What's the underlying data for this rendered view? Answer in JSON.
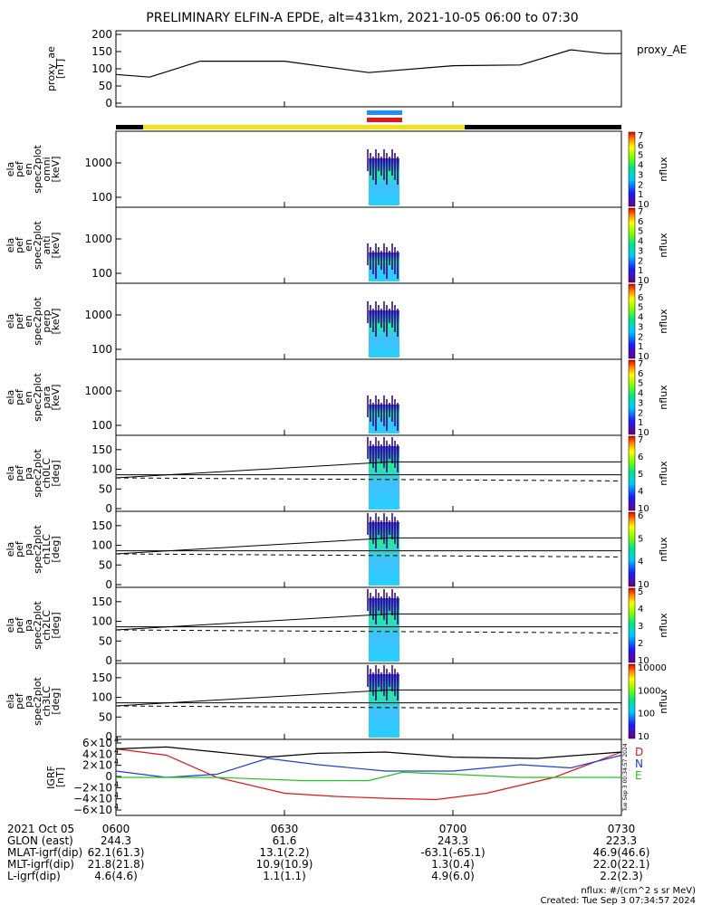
{
  "title": "PRELIMINARY ELFIN-A EPDE, alt=431km, 2021-10-05 06:00 to 07:30",
  "colors": {
    "accent_blue": "#1e90ff",
    "accent_red": "#e8141b",
    "accent_yellow": "#f5e11a",
    "trace_black": "#000000",
    "trace_red": "#e0141b",
    "trace_blue": "#1f3fd6",
    "trace_green": "#22c322"
  },
  "panels": [
    {
      "id": "proxy_ae",
      "ylabel": [
        "proxy_ae",
        "[nT]"
      ],
      "side_label": "proxy_AE",
      "yticks": [
        "0",
        "50",
        "100",
        "150",
        "200"
      ]
    },
    {
      "id": "omni",
      "ylabel": [
        "ela",
        "pef",
        "en",
        "spec2plot",
        "omni",
        "[keV]"
      ],
      "yticks": [
        "100",
        "1000"
      ],
      "cbar_label": "nflux",
      "cbar_ticks": [
        "10",
        "1",
        "2",
        "3",
        "4",
        "5",
        "6",
        "7"
      ]
    },
    {
      "id": "anti",
      "ylabel": [
        "ela",
        "pef",
        "en",
        "spec2plot",
        "anti",
        "[keV]"
      ],
      "yticks": [
        "100",
        "1000"
      ],
      "cbar_label": "nflux",
      "cbar_ticks": [
        "10",
        "1",
        "2",
        "3",
        "4",
        "5",
        "6",
        "7"
      ]
    },
    {
      "id": "perp",
      "ylabel": [
        "ela",
        "pef",
        "en",
        "spec2plot",
        "perp",
        "[keV]"
      ],
      "yticks": [
        "100",
        "1000"
      ],
      "cbar_label": "nflux",
      "cbar_ticks": [
        "10",
        "1",
        "2",
        "3",
        "4",
        "5",
        "6",
        "7"
      ]
    },
    {
      "id": "para",
      "ylabel": [
        "ela",
        "pef",
        "en",
        "spec2plot",
        "para",
        "[keV]"
      ],
      "yticks": [
        "100",
        "1000"
      ],
      "cbar_label": "nflux",
      "cbar_ticks": [
        "10",
        "1",
        "2",
        "3",
        "4",
        "5",
        "6",
        "7"
      ]
    },
    {
      "id": "ch0LC",
      "ylabel": [
        "ela",
        "pef",
        "pa",
        "spec2plot",
        "ch0LC",
        "[deg]"
      ],
      "yticks": [
        "0",
        "50",
        "100",
        "150"
      ],
      "cbar_label": "nflux",
      "cbar_ticks": [
        "10",
        "4",
        "5",
        "6",
        "7"
      ]
    },
    {
      "id": "ch1LC",
      "ylabel": [
        "ela",
        "pef",
        "pa",
        "spec2plot",
        "ch1LC",
        "[deg]"
      ],
      "yticks": [
        "0",
        "50",
        "100",
        "150"
      ],
      "cbar_label": "nflux",
      "cbar_ticks": [
        "10",
        "4",
        "5",
        "6"
      ]
    },
    {
      "id": "ch2LC",
      "ylabel": [
        "ela",
        "pef",
        "pa",
        "spec2plot",
        "ch2LC",
        "[deg]"
      ],
      "yticks": [
        "0",
        "50",
        "100",
        "150"
      ],
      "cbar_label": "nflux",
      "cbar_ticks": [
        "10",
        "2",
        "3",
        "4",
        "5"
      ]
    },
    {
      "id": "ch3LC",
      "ylabel": [
        "ela",
        "pef",
        "pa",
        "spec2plot",
        "ch3LC",
        "[deg]"
      ],
      "yticks": [
        "0",
        "50",
        "100",
        "150"
      ],
      "cbar_label": "nflux",
      "cbar_ticks": [
        "10",
        "100",
        "1000",
        "10000"
      ]
    },
    {
      "id": "igrf",
      "ylabel": [
        "IGRF",
        "[nT]"
      ],
      "yticks": [
        "−6×10",
        "−4×10",
        "−2×10",
        "0",
        "2×10",
        "4×10",
        "6×10"
      ],
      "ytick_exp": "4",
      "legend": [
        "D",
        "N",
        "E"
      ],
      "created_vertical": "Tue Sep  3 00:34:57 2024"
    }
  ],
  "bottom_table": {
    "rows": [
      {
        "label": "2021 Oct 05",
        "values": [
          "0600",
          "0630",
          "0700",
          "0730"
        ]
      },
      {
        "label": "GLON (east)",
        "values": [
          "244.3",
          "61.6",
          "243.3",
          "223.3"
        ]
      },
      {
        "label": "MLAT-igrf(dip)",
        "values": [
          "62.1(61.3)",
          "13.1(2.2)",
          "-63.1(-65.1)",
          "46.9(46.6)"
        ]
      },
      {
        "label": "MLT-igrf(dip)",
        "values": [
          "21.8(21.8)",
          "10.9(10.9)",
          "1.3(0.4)",
          "22.0(22.1)"
        ]
      },
      {
        "label": "L-igrf(dip)",
        "values": [
          "4.6(4.6)",
          "1.1(1.1)",
          "4.9(6.0)",
          "2.2(2.3)"
        ]
      }
    ]
  },
  "footer": {
    "units": "nflux: #/(cm^2 s sr MeV)",
    "created": "Created: Tue Sep  3 07:34:57 2024"
  },
  "chart_data": [
    {
      "type": "line",
      "panel": "proxy_ae",
      "x_hours": [
        6.0,
        6.1,
        6.25,
        6.5,
        6.75,
        7.0,
        7.2,
        7.35,
        7.45,
        7.5
      ],
      "values": [
        85,
        78,
        120,
        120,
        90,
        108,
        110,
        150,
        140,
        140
      ],
      "ylim": [
        0,
        200
      ]
    },
    {
      "type": "line",
      "panel": "igrf",
      "ylim": [
        -60000,
        60000
      ],
      "series": [
        {
          "name": "D",
          "x_hours": [
            6.0,
            6.15,
            6.3,
            6.5,
            6.65,
            6.8,
            6.95,
            7.1,
            7.3,
            7.5
          ],
          "values": [
            45000,
            35000,
            0,
            -25000,
            -30000,
            -33000,
            -35000,
            -25000,
            0,
            40000
          ]
        },
        {
          "name": "N",
          "x_hours": [
            6.0,
            6.15,
            6.3,
            6.45,
            6.6,
            6.8,
            7.0,
            7.2,
            7.35,
            7.5
          ],
          "values": [
            10000,
            0,
            5000,
            30000,
            20000,
            10000,
            10000,
            20000,
            15000,
            35000
          ]
        },
        {
          "name": "E",
          "x_hours": [
            6.0,
            6.3,
            6.55,
            6.75,
            6.85,
            7.0,
            7.2,
            7.5
          ],
          "values": [
            0,
            0,
            -5000,
            -5000,
            8000,
            5000,
            0,
            0
          ]
        },
        {
          "x_hours": [
            6.0,
            6.15,
            6.3,
            6.45,
            6.6,
            6.8,
            7.0,
            7.25,
            7.5
          ],
          "values": [
            45000,
            48000,
            40000,
            32000,
            38000,
            40000,
            32000,
            30000,
            40000
          ]
        }
      ]
    }
  ]
}
